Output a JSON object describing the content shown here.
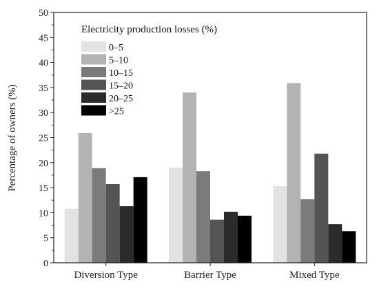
{
  "chart_data": {
    "type": "bar",
    "ylabel": "Percentage of owners (%)",
    "ylim": [
      0,
      50
    ],
    "yticks": [
      0,
      5,
      10,
      15,
      20,
      25,
      30,
      35,
      40,
      45,
      50
    ],
    "categories": [
      "Diversion Type",
      "Barrier Type",
      "Mixed Type"
    ],
    "legend": {
      "title": "Electricity production losses (%)",
      "position": "top-left"
    },
    "series": [
      {
        "name": "0–5",
        "color": "#e2e2e2",
        "values": [
          10.8,
          19.0,
          15.3
        ]
      },
      {
        "name": "5–10",
        "color": "#b3b3b3",
        "values": [
          25.9,
          34.0,
          35.9
        ]
      },
      {
        "name": "10–15",
        "color": "#7b7b7b",
        "values": [
          18.9,
          18.3,
          12.7
        ]
      },
      {
        "name": "15–20",
        "color": "#545454",
        "values": [
          15.7,
          8.6,
          21.8
        ]
      },
      {
        "name": "20–25",
        "color": "#2b2b2b",
        "values": [
          11.3,
          10.2,
          7.7
        ]
      },
      {
        "name": ">25",
        "color": "#000000",
        "values": [
          17.1,
          9.4,
          6.3
        ]
      }
    ]
  }
}
